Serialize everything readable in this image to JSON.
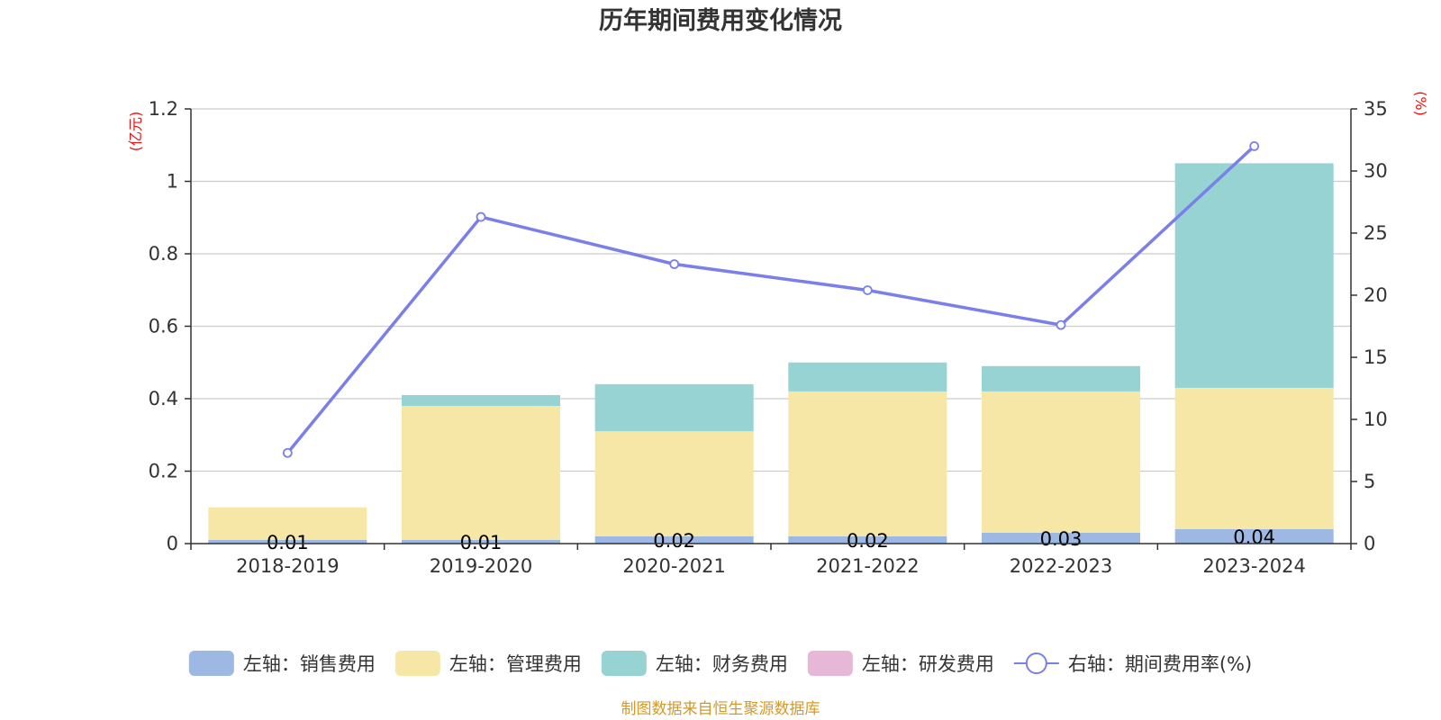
{
  "chart_data": {
    "type": "bar",
    "title": "历年期间费用变化情况",
    "categories": [
      "2018-2019",
      "2019-2020",
      "2020-2021",
      "2021-2022",
      "2022-2023",
      "2023-2024"
    ],
    "stacked": true,
    "y_left": {
      "unit_label": "(亿元)",
      "ylim": [
        0,
        1.2
      ],
      "ticks": [
        "0",
        "0.2",
        "0.4",
        "0.6",
        "0.8",
        "1",
        "1.2"
      ],
      "tick_values": [
        0,
        0.2,
        0.4,
        0.6,
        0.8,
        1.0,
        1.2
      ]
    },
    "y_right": {
      "unit_label": "(%)",
      "ylim": [
        0,
        35
      ],
      "ticks": [
        "0",
        "5",
        "10",
        "15",
        "20",
        "25",
        "30",
        "35"
      ],
      "tick_values": [
        0,
        5,
        10,
        15,
        20,
        25,
        30,
        35
      ]
    },
    "series": [
      {
        "name": "左轴：销售费用",
        "type": "bar",
        "axis": "left",
        "color": "#9db8e3",
        "values": [
          0.01,
          0.01,
          0.02,
          0.02,
          0.03,
          0.04
        ],
        "labels": [
          "0.01",
          "0.01",
          "0.02",
          "0.02",
          "0.03",
          "0.04"
        ]
      },
      {
        "name": "左轴：管理费用",
        "type": "bar",
        "axis": "left",
        "color": "#f7e7a6",
        "values": [
          0.09,
          0.37,
          0.29,
          0.4,
          0.39,
          0.39
        ]
      },
      {
        "name": "左轴：财务费用",
        "type": "bar",
        "axis": "left",
        "color": "#97d3d3",
        "values": [
          0.0,
          0.03,
          0.13,
          0.08,
          0.07,
          0.62
        ]
      },
      {
        "name": "左轴：研发费用",
        "type": "bar",
        "axis": "left",
        "color": "#e7b7d7",
        "values": [
          0,
          0,
          0,
          0,
          0,
          0
        ]
      },
      {
        "name": "右轴：期间费用率(%)",
        "type": "line",
        "axis": "right",
        "color": "#7b7fe8",
        "values": [
          7.3,
          26.3,
          22.5,
          20.4,
          17.6,
          32.0
        ]
      }
    ],
    "legend_position": "bottom",
    "grid": true
  },
  "source": {
    "text": "制图数据来自恒生聚源数据库",
    "color": "#d29a2a"
  },
  "colors": {
    "axis_unit": "#ee1111",
    "axis_line": "#333333",
    "grid_line": "#cccccc"
  }
}
